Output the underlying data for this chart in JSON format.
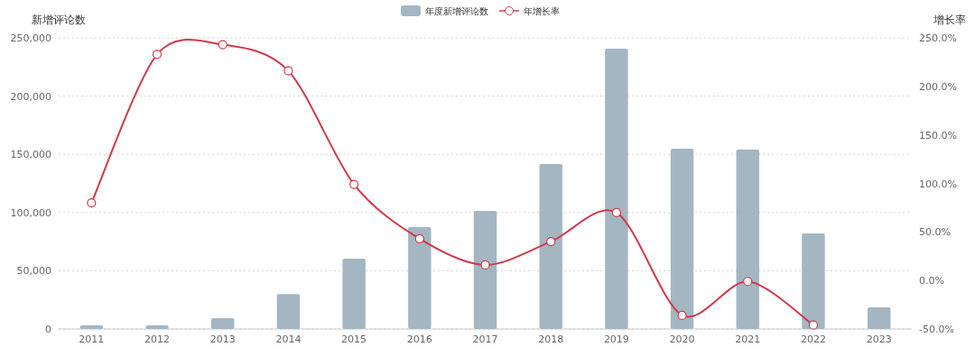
{
  "chart_data": {
    "type": "bar",
    "categories": [
      "2011",
      "2012",
      "2013",
      "2014",
      "2015",
      "2016",
      "2017",
      "2018",
      "2019",
      "2020",
      "2021",
      "2022",
      "2023"
    ],
    "series": [
      {
        "name": "年度新增评论数",
        "color": "#a3b6c2",
        "values": [
          3100,
          3100,
          9300,
          30000,
          60400,
          87500,
          101400,
          141600,
          240700,
          154800,
          154000,
          82000,
          18600
        ]
      },
      {
        "name": "年增长率",
        "type": "line",
        "axis": "y2",
        "color": "#d0394a",
        "marker": "circle",
        "values": [
          80,
          233,
          243,
          216,
          99,
          43,
          16,
          40,
          70,
          -36,
          -1,
          -46,
          null
        ]
      }
    ],
    "ylabel": "新增评论数",
    "y2label": "增长率",
    "ylim": [
      0,
      250000
    ],
    "yticks": [
      0,
      {
        "value": 50000,
        "label": "50,000"
      },
      {
        "value": 100000,
        "label": "100,000"
      },
      {
        "value": 150000,
        "label": "150,000"
      },
      {
        "value": 200000,
        "label": "200,000"
      },
      {
        "value": 250000,
        "label": "250,000"
      }
    ],
    "y2lim": [
      -50,
      250
    ],
    "y2ticks": [
      {
        "value": -50,
        "label": "-50.0%"
      },
      {
        "value": 0,
        "label": "0.0%"
      },
      {
        "value": 50,
        "label": "50.0%"
      },
      {
        "value": 100,
        "label": "100.0%"
      },
      {
        "value": 150,
        "label": "150.0%"
      },
      {
        "value": 200,
        "label": "200.0%"
      },
      {
        "value": 250,
        "label": "250.0%"
      }
    ],
    "grid": "y",
    "legend": "top"
  }
}
